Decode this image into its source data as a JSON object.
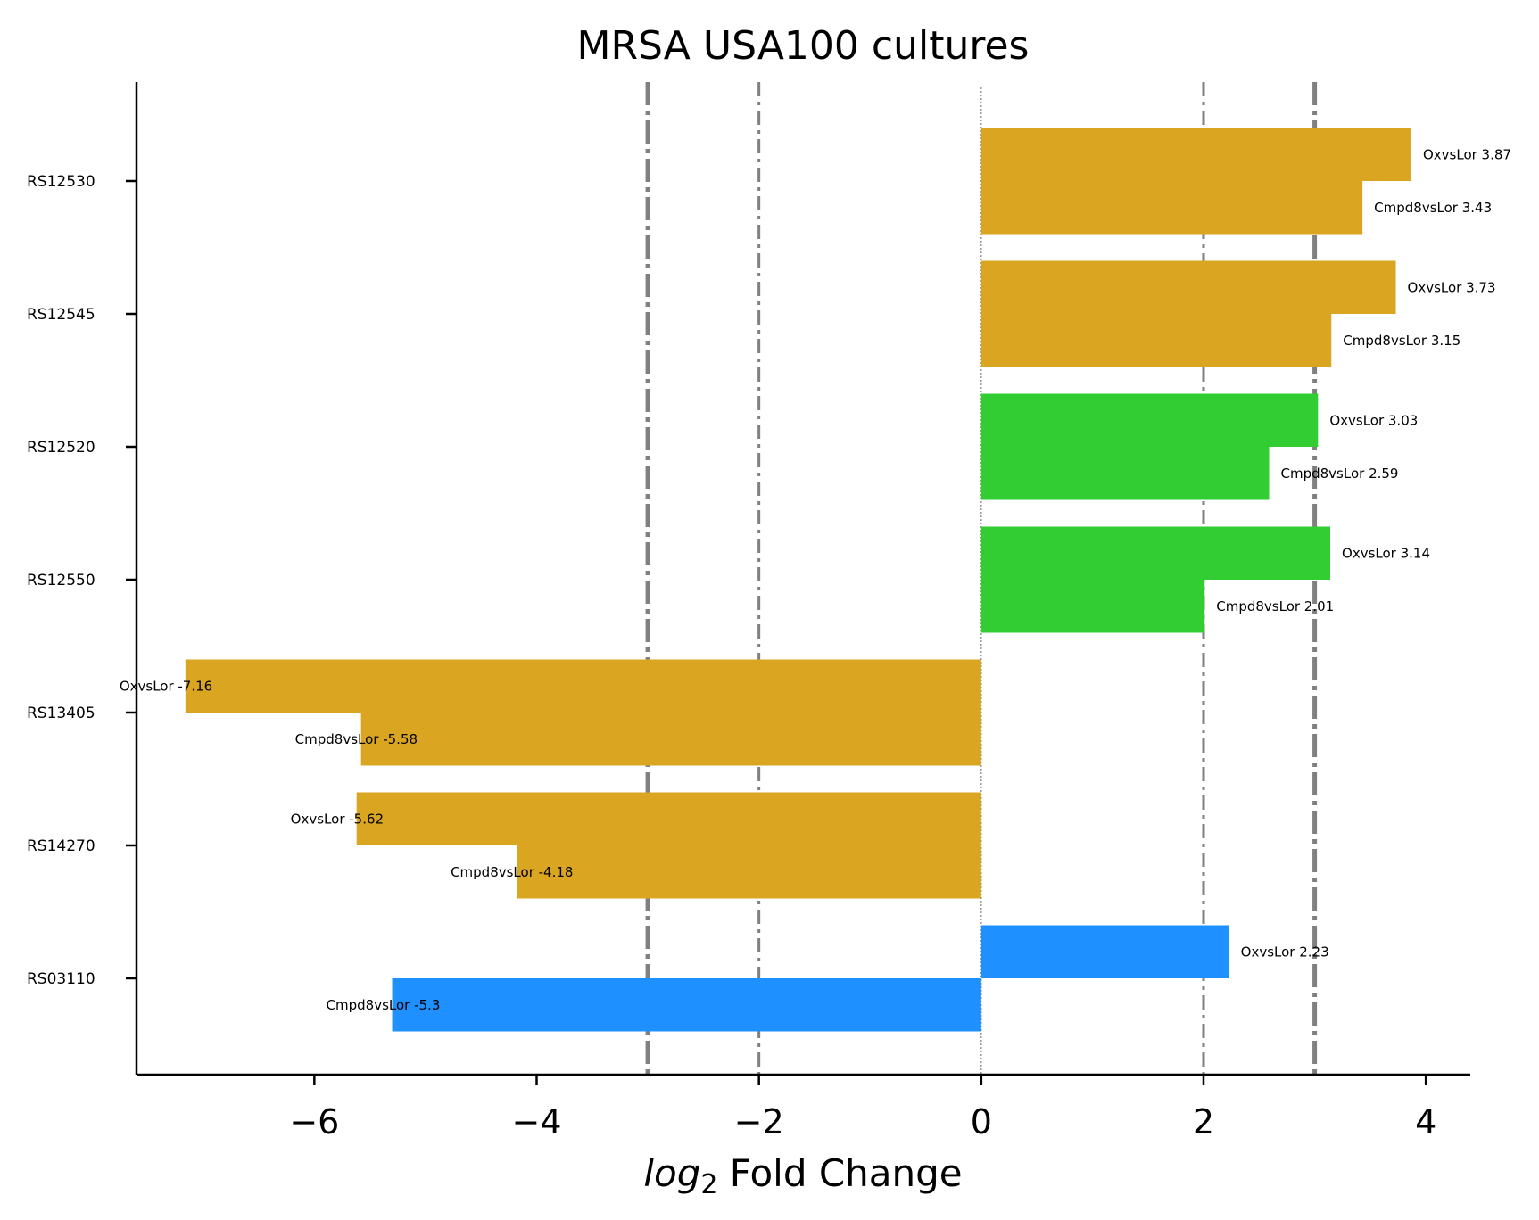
{
  "chart_data": {
    "type": "bar",
    "orientation": "horizontal",
    "title": "MRSA USA100 cultures",
    "xlabel": {
      "main": "log",
      "sub": "2",
      "rest": " Fold Change"
    },
    "xlim": [
      -7.6,
      4.4
    ],
    "xticks": [
      -6,
      -4,
      -2,
      0,
      2,
      4
    ],
    "xtick_labels": [
      "−6",
      "−4",
      "−2",
      "0",
      "2",
      "4"
    ],
    "reference_lines": [
      {
        "x": -3,
        "style": "dashdot-heavy"
      },
      {
        "x": -2,
        "style": "dashdot-light"
      },
      {
        "x": 0,
        "style": "dotted"
      },
      {
        "x": 2,
        "style": "dashdot-light"
      },
      {
        "x": 3,
        "style": "dashdot-heavy"
      }
    ],
    "colors": {
      "gold": "#DAA520",
      "green": "#32CD32",
      "blue": "#1E90FF",
      "refline": "#808080"
    },
    "categories": [
      "RS12530",
      "RS12545",
      "RS12520",
      "RS12550",
      "RS13405",
      "RS14270",
      "RS03110"
    ],
    "series": [
      {
        "name": "OxvsLor",
        "values": [
          3.87,
          3.73,
          3.03,
          3.14,
          -7.16,
          -5.62,
          2.23
        ]
      },
      {
        "name": "Cmpd8vsLor",
        "values": [
          3.43,
          3.15,
          2.59,
          2.01,
          -5.58,
          -4.18,
          -5.3
        ]
      }
    ],
    "bar_colors": [
      "gold",
      "gold",
      "green",
      "green",
      "gold",
      "gold",
      "blue"
    ],
    "bar_labels": [
      [
        "OxvsLor 3.87",
        "Cmpd8vsLor 3.43"
      ],
      [
        "OxvsLor 3.73",
        "Cmpd8vsLor 3.15"
      ],
      [
        "OxvsLor 3.03",
        "Cmpd8vsLor 2.59"
      ],
      [
        "OxvsLor 3.14",
        "Cmpd8vsLor 2.01"
      ],
      [
        "OxvsLor -7.16",
        "Cmpd8vsLor -5.58"
      ],
      [
        "OxvsLor -5.62",
        "Cmpd8vsLor -4.18"
      ],
      [
        "OxvsLor 2.23",
        "Cmpd8vsLor -5.3"
      ]
    ]
  }
}
